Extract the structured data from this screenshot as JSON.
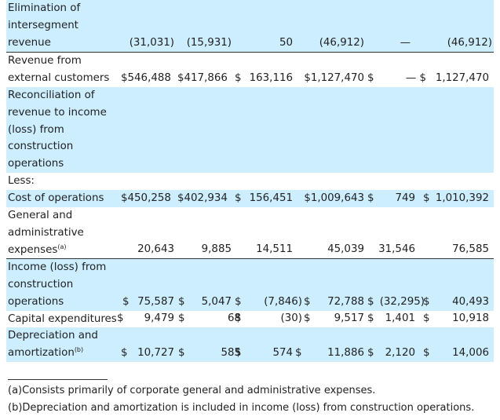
{
  "rows": [
    {
      "label_lines": [
        "Elimination of",
        "intersegment",
        "revenue"
      ],
      "shaded": true,
      "cells": [
        "(31,031)",
        "(15,931)",
        "50",
        "(46,912)",
        "—",
        "(46,912)"
      ]
    },
    {
      "label_lines": [
        "Revenue from",
        "external customers"
      ],
      "shaded": false,
      "cells": [
        "$546,488",
        "$417,866",
        "$",
        "163,116",
        "$1,127,470",
        "$",
        "— $",
        "1,127,470"
      ]
    },
    {
      "label_lines": [
        "Reconciliation of",
        "revenue to income",
        "(loss) from",
        "construction",
        "operations"
      ],
      "shaded": true,
      "cells": []
    },
    {
      "label_lines": [
        "Less:"
      ],
      "shaded": false,
      "cells": []
    },
    {
      "label_lines": [
        "Cost of operations"
      ],
      "shaded": true,
      "cells": [
        "$450,258",
        "$402,934",
        "$",
        "156,451",
        "$1,009,643",
        "$",
        "749",
        "$",
        "1,010,392"
      ]
    },
    {
      "label_lines": [
        "General and",
        "administrative",
        "expenses"
      ],
      "footnote_marker": "(a)",
      "shaded": false,
      "cells": [
        "20,643",
        "9,885",
        "14,511",
        "45,039",
        "31,546",
        "76,585"
      ]
    },
    {
      "label_lines": [
        "Income (loss) from",
        "construction",
        "operations"
      ],
      "shaded": true,
      "cells": [
        "$",
        "75,587",
        "$",
        "5,047",
        "$",
        "(7,846)",
        "$",
        "72,788",
        "$",
        "(32,295)",
        "$",
        "40,493"
      ]
    },
    {
      "label_lines": [
        "Capital expenditures"
      ],
      "shaded": false,
      "cells": [
        "$",
        "9,479",
        "$",
        "68",
        "$",
        "(30)",
        "$",
        "9,517",
        "$",
        "1,401",
        "$",
        "10,918"
      ]
    },
    {
      "label_lines": [
        "Depreciation and",
        "amortization"
      ],
      "footnote_marker": "(b)",
      "shaded": true,
      "cells": [
        "$",
        "10,727",
        "$",
        "585",
        "$",
        "574",
        "$",
        "11,886",
        "$",
        "2,120",
        "$",
        "14,006"
      ]
    }
  ],
  "footnotes": [
    "(a)Consists primarily of corporate general and administrative expenses.",
    "(b)Depreciation and amortization is included in income (loss) from construction operations."
  ]
}
